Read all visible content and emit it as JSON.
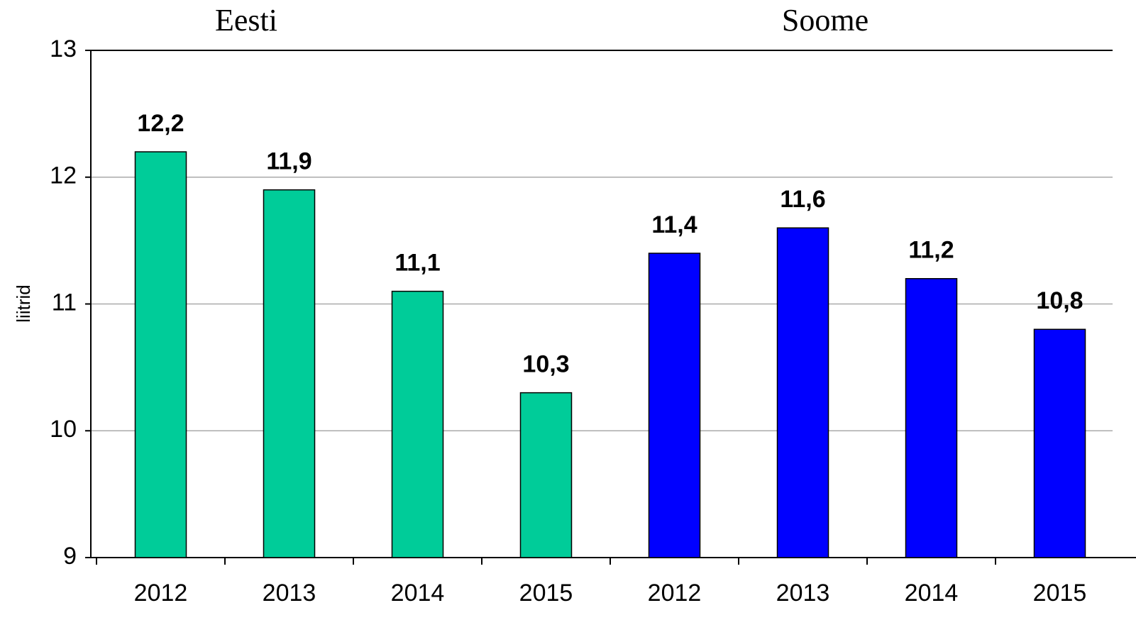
{
  "chart_data": {
    "type": "bar",
    "y_label": "liitrid",
    "categories": [
      "2012",
      "2013",
      "2014",
      "2015"
    ],
    "series": [
      {
        "name": "Eesti",
        "color": "#00cc99",
        "values": [
          12.2,
          11.9,
          11.1,
          10.3
        ],
        "value_labels": [
          "12,2",
          "11,9",
          "11,1",
          "10,3"
        ]
      },
      {
        "name": "Soome",
        "color": "#0000ff",
        "values": [
          11.4,
          11.6,
          11.2,
          10.8
        ],
        "value_labels": [
          "11,4",
          "11,6",
          "11,2",
          "10,8"
        ]
      }
    ],
    "ylim": [
      9,
      13
    ],
    "yticks": [
      9,
      10,
      11,
      12,
      13
    ],
    "grid": true
  }
}
